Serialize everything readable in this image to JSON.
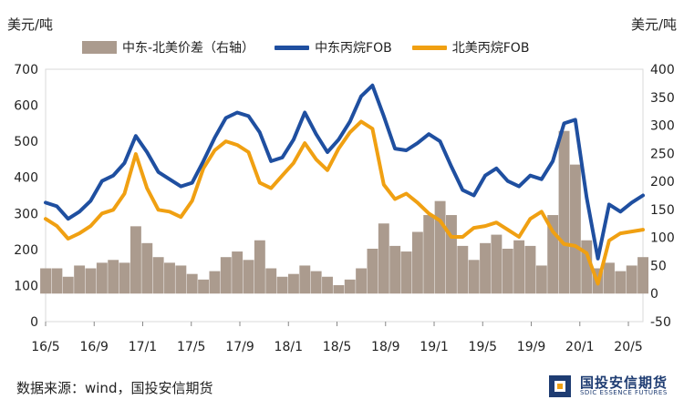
{
  "units": {
    "left": "美元/吨",
    "right": "美元/吨"
  },
  "legend": [
    {
      "label": "中东-北美价差（右轴）",
      "color": "#ab9b8e",
      "kind": "area"
    },
    {
      "label": "中东丙烷FOB",
      "color": "#1f4fa0",
      "kind": "line"
    },
    {
      "label": "北美丙烷FOB",
      "color": "#f0a012",
      "kind": "line"
    }
  ],
  "source": "数据来源：wind，国投安信期货",
  "logo": {
    "cn": "国投安信期货",
    "en": "SDIC ESSENCE FUTURES"
  },
  "chart_data": {
    "type": "line",
    "x_ticks": [
      "16/5",
      "16/9",
      "17/1",
      "17/5",
      "17/9",
      "18/1",
      "18/5",
      "18/9",
      "19/1",
      "19/5",
      "19/9",
      "20/1",
      "20/5"
    ],
    "left_axis": {
      "min": 0,
      "max": 700,
      "ticks": [
        0,
        100,
        200,
        300,
        400,
        500,
        600,
        700
      ]
    },
    "right_axis": {
      "min": -50,
      "max": 400,
      "ticks": [
        -50,
        0,
        50,
        100,
        150,
        200,
        250,
        300,
        350,
        400
      ]
    },
    "x_range": [
      0,
      53
    ],
    "series": [
      {
        "name": "中东丙烷FOB",
        "axis": "left",
        "color": "#1f4fa0",
        "x": [
          0,
          1,
          2,
          3,
          4,
          5,
          6,
          7,
          8,
          9,
          10,
          11,
          12,
          13,
          14,
          15,
          16,
          17,
          18,
          19,
          20,
          21,
          22,
          23,
          24,
          25,
          26,
          27,
          28,
          29,
          30,
          31,
          32,
          33,
          34,
          35,
          36,
          37,
          38,
          39,
          40,
          41,
          42,
          43,
          44,
          45,
          46,
          47,
          48,
          49,
          50,
          51,
          52,
          53
        ],
        "values": [
          330,
          320,
          285,
          305,
          335,
          390,
          405,
          440,
          515,
          470,
          415,
          395,
          375,
          385,
          445,
          510,
          565,
          580,
          570,
          525,
          445,
          455,
          505,
          580,
          520,
          470,
          505,
          555,
          625,
          655,
          570,
          480,
          475,
          495,
          520,
          500,
          430,
          365,
          350,
          405,
          425,
          390,
          375,
          405,
          395,
          445,
          550,
          560,
          345,
          175,
          325,
          305,
          330,
          350
        ]
      },
      {
        "name": "北美丙烷FOB",
        "axis": "left",
        "color": "#f0a012",
        "x": [
          0,
          1,
          2,
          3,
          4,
          5,
          6,
          7,
          8,
          9,
          10,
          11,
          12,
          13,
          14,
          15,
          16,
          17,
          18,
          19,
          20,
          21,
          22,
          23,
          24,
          25,
          26,
          27,
          28,
          29,
          30,
          31,
          32,
          33,
          34,
          35,
          36,
          37,
          38,
          39,
          40,
          41,
          42,
          43,
          44,
          45,
          46,
          47,
          48,
          49,
          50,
          51,
          52,
          53
        ],
        "values": [
          285,
          265,
          230,
          245,
          265,
          300,
          310,
          355,
          465,
          370,
          310,
          305,
          290,
          335,
          425,
          475,
          500,
          490,
          470,
          385,
          370,
          405,
          440,
          495,
          450,
          420,
          480,
          525,
          555,
          535,
          380,
          340,
          355,
          330,
          300,
          280,
          235,
          235,
          260,
          265,
          275,
          255,
          235,
          285,
          305,
          250,
          215,
          210,
          190,
          105,
          225,
          245,
          250,
          255
        ]
      },
      {
        "name": "中东-北美价差（右轴）",
        "axis": "right",
        "color": "#ab9b8e",
        "x": [
          0,
          1,
          2,
          3,
          4,
          5,
          6,
          7,
          8,
          9,
          10,
          11,
          12,
          13,
          14,
          15,
          16,
          17,
          18,
          19,
          20,
          21,
          22,
          23,
          24,
          25,
          26,
          27,
          28,
          29,
          30,
          31,
          32,
          33,
          34,
          35,
          36,
          37,
          38,
          39,
          40,
          41,
          42,
          43,
          44,
          45,
          46,
          47,
          48,
          49,
          50,
          51,
          52,
          53
        ],
        "values": [
          45,
          45,
          30,
          50,
          45,
          55,
          60,
          55,
          120,
          90,
          65,
          55,
          50,
          35,
          25,
          40,
          65,
          75,
          60,
          95,
          45,
          30,
          35,
          50,
          40,
          30,
          15,
          25,
          45,
          80,
          125,
          85,
          75,
          110,
          140,
          165,
          140,
          85,
          60,
          90,
          105,
          80,
          95,
          85,
          50,
          140,
          290,
          230,
          95,
          45,
          55,
          40,
          50,
          65
        ]
      }
    ]
  }
}
